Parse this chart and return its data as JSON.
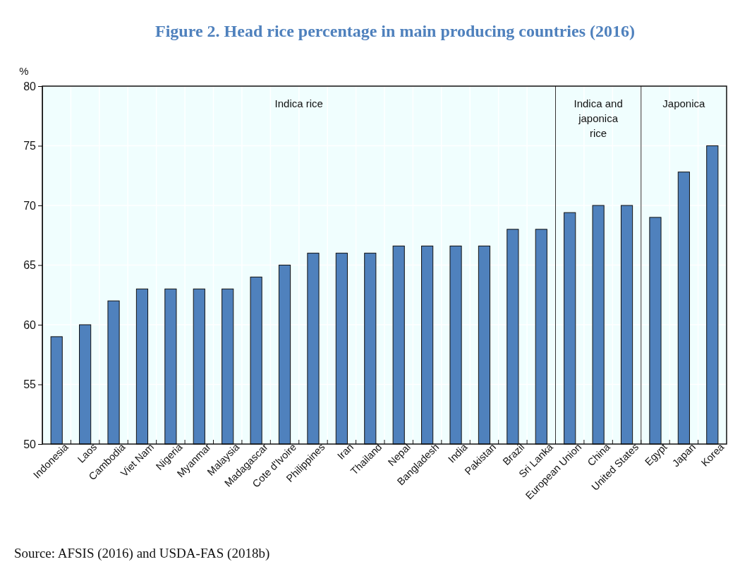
{
  "chart_data": {
    "type": "bar",
    "title": "Figure 2. Head rice percentage in main producing countries (2016)",
    "ylabel": "%",
    "categories": [
      "Indonesia",
      "Laos",
      "Cambodia",
      "Viet Nam",
      "Nigeria",
      "Myanmar",
      "Malaysia",
      "Madagascar",
      "Cote d'Ivoire",
      "Philippines",
      "Iran",
      "Thailand",
      "Nepal",
      "Bangladesh",
      "India",
      "Pakistan",
      "Brazil",
      "Sri Lanka",
      "European Union",
      "China",
      "United States",
      "Egypt",
      "Japan",
      "Korea"
    ],
    "values": [
      59,
      60,
      62,
      63,
      63,
      63,
      63,
      64,
      65,
      66,
      66,
      66,
      66.6,
      66.6,
      66.6,
      66.6,
      68,
      68,
      69.4,
      70,
      70,
      69,
      72.8,
      75
    ],
    "color": "#4f81bd",
    "ylim": [
      50,
      80
    ],
    "yticks": [
      50,
      55,
      60,
      65,
      70,
      75,
      80
    ],
    "grid": true,
    "annotations": [
      "Indica rice",
      "Indica and japonica rice",
      "Japonica",
      "Source: AFSIS (2016) and USDA-FAS (2018b)"
    ]
  }
}
